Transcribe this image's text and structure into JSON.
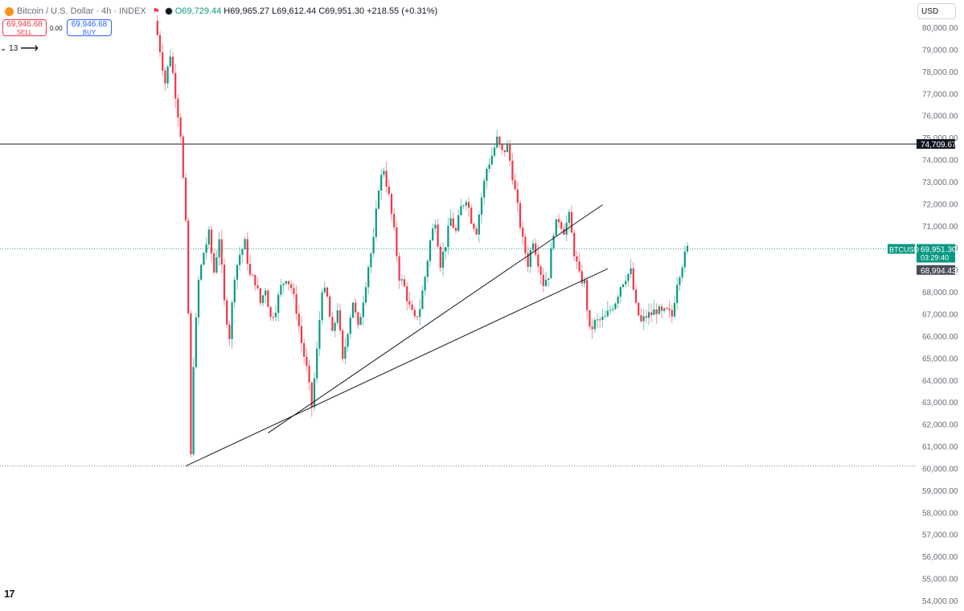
{
  "header": {
    "symbol": "Bitcoin / U.S. Dollar · 4h · INDEX",
    "open": "O69,729.44",
    "high": "H69,965.27",
    "low": "L69,612.44",
    "close": "C69,951.30",
    "change": "+218.55 (+0.31%)"
  },
  "trade": {
    "sell_price": "69,946.68",
    "sell_label": "SELL",
    "spread": "0.00",
    "buy_price": "69,946.68",
    "buy_label": "BUY"
  },
  "indicator": {
    "count": "13"
  },
  "currency": "USD",
  "colors": {
    "up": "#089981",
    "down": "#f23645",
    "line": "#131722",
    "price_tag": "#089981"
  },
  "price_tags": {
    "resistance": "74,709.67",
    "symbol": "BTCUSD",
    "last_price": "69,951.30",
    "countdown": "03:29:40",
    "trend_level": "68,994.43"
  },
  "chart_data": {
    "type": "candlestick",
    "title": "Bitcoin / U.S. Dollar · 4h · INDEX",
    "ylim": [
      54000,
      80500
    ],
    "y_ticks": [
      80000,
      79000,
      78000,
      77000,
      76000,
      75000,
      74000,
      73000,
      72000,
      71000,
      70000,
      69000,
      68000,
      67000,
      66000,
      65000,
      64000,
      63000,
      62000,
      61000,
      60000,
      59000,
      58000,
      57000,
      56000,
      55000,
      54000
    ],
    "y_tick_labels": [
      "80,000.00",
      "79,000.00",
      "78,000.00",
      "77,000.00",
      "76,000.00",
      "75,000.00",
      "74,000.00",
      "73,000.00",
      "72,000.00",
      "71,000.00",
      "70,000.00",
      "69,000.00",
      "68,000.00",
      "67,000.00",
      "66,000.00",
      "65,000.00",
      "64,000.00",
      "63,000.00",
      "62,000.00",
      "61,000.00",
      "60,000.00",
      "59,000.00",
      "58,000.00",
      "57,000.00",
      "56,000.00",
      "55,000.00",
      "54,000.00"
    ],
    "horizontal_lines": [
      {
        "value": 74709.67,
        "style": "solid"
      },
      {
        "value": 69951.3,
        "style": "dotted"
      },
      {
        "value": 60100,
        "style": "dotted"
      }
    ],
    "trend_lines": [
      {
        "from": [
          0,
          60100
        ],
        "to": [
          164,
          69050
        ]
      },
      {
        "from": [
          32,
          61600
        ],
        "to": [
          162,
          71950
        ]
      }
    ],
    "price_path": [
      [
        -12,
        80300
      ],
      [
        -10,
        79000
      ],
      [
        -8,
        77500
      ],
      [
        -6,
        78800
      ],
      [
        -4,
        77000
      ],
      [
        -2,
        75200
      ],
      [
        0,
        71000
      ],
      [
        1,
        67000
      ],
      [
        2,
        60500
      ],
      [
        3,
        64800
      ],
      [
        5,
        68500
      ],
      [
        7,
        69800
      ],
      [
        9,
        70600
      ],
      [
        11,
        68900
      ],
      [
        13,
        70500
      ],
      [
        15,
        67500
      ],
      [
        17,
        66000
      ],
      [
        19,
        68800
      ],
      [
        21,
        69700
      ],
      [
        23,
        70200
      ],
      [
        25,
        68700
      ],
      [
        27,
        68500
      ],
      [
        29,
        67500
      ],
      [
        31,
        68200
      ],
      [
        33,
        66800
      ],
      [
        35,
        67300
      ],
      [
        37,
        68200
      ],
      [
        39,
        68700
      ],
      [
        41,
        68200
      ],
      [
        43,
        67200
      ],
      [
        45,
        65700
      ],
      [
        47,
        64500
      ],
      [
        49,
        62800
      ],
      [
        51,
        65300
      ],
      [
        53,
        68200
      ],
      [
        55,
        67700
      ],
      [
        57,
        66000
      ],
      [
        59,
        67300
      ],
      [
        61,
        64800
      ],
      [
        63,
        66300
      ],
      [
        65,
        67600
      ],
      [
        67,
        66300
      ],
      [
        69,
        67700
      ],
      [
        71,
        69200
      ],
      [
        73,
        70300
      ],
      [
        75,
        72800
      ],
      [
        77,
        73600
      ],
      [
        79,
        72300
      ],
      [
        81,
        70700
      ],
      [
        83,
        68700
      ],
      [
        85,
        68200
      ],
      [
        87,
        67300
      ],
      [
        89,
        66700
      ],
      [
        91,
        67300
      ],
      [
        93,
        68700
      ],
      [
        95,
        70300
      ],
      [
        97,
        71300
      ],
      [
        99,
        69300
      ],
      [
        101,
        70200
      ],
      [
        103,
        71300
      ],
      [
        105,
        70700
      ],
      [
        107,
        71800
      ],
      [
        109,
        72300
      ],
      [
        111,
        71300
      ],
      [
        113,
        70800
      ],
      [
        115,
        72300
      ],
      [
        117,
        73600
      ],
      [
        119,
        74200
      ],
      [
        121,
        74900
      ],
      [
        123,
        74300
      ],
      [
        125,
        74600
      ],
      [
        127,
        73300
      ],
      [
        129,
        71800
      ],
      [
        131,
        70300
      ],
      [
        133,
        69300
      ],
      [
        135,
        70400
      ],
      [
        137,
        69400
      ],
      [
        139,
        68400
      ],
      [
        141,
        68800
      ],
      [
        143,
        70800
      ],
      [
        145,
        71300
      ],
      [
        147,
        70800
      ],
      [
        149,
        71400
      ],
      [
        151,
        69800
      ],
      [
        153,
        68700
      ],
      [
        155,
        68400
      ],
      [
        157,
        66200
      ],
      [
        159,
        66600
      ],
      [
        161,
        66700
      ],
      [
        163,
        66800
      ],
      [
        165,
        67200
      ],
      [
        167,
        67600
      ],
      [
        169,
        68300
      ],
      [
        171,
        68700
      ],
      [
        173,
        68900
      ],
      [
        175,
        67300
      ],
      [
        177,
        66600
      ],
      [
        179,
        66900
      ],
      [
        181,
        67000
      ],
      [
        183,
        67200
      ],
      [
        185,
        67000
      ],
      [
        187,
        67100
      ],
      [
        189,
        66900
      ],
      [
        191,
        68500
      ],
      [
        193,
        69300
      ],
      [
        195,
        69951
      ]
    ]
  }
}
